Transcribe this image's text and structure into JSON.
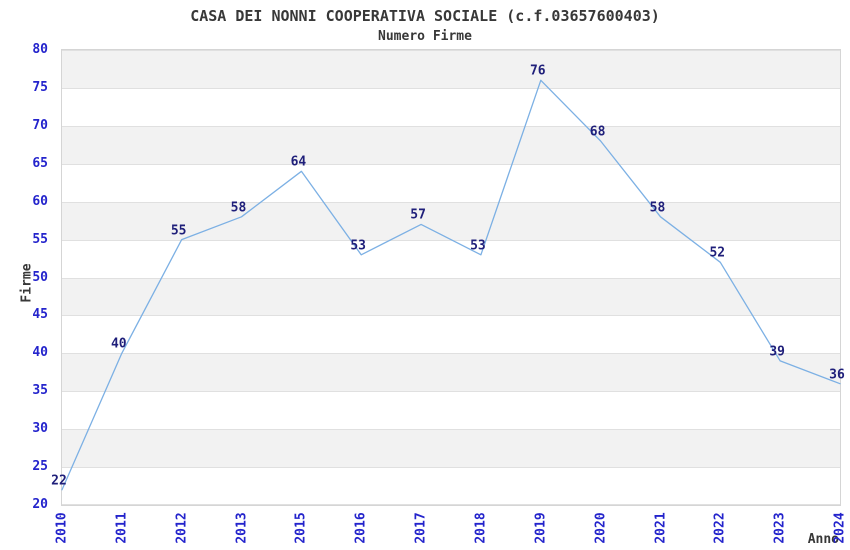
{
  "chart_data": {
    "type": "line",
    "title": "CASA DEI NONNI COOPERATIVA SOCIALE (c.f.03657600403)",
    "subtitle": "Numero Firme",
    "xlabel": "Anno",
    "ylabel": "Firme",
    "categories": [
      "2010",
      "2011",
      "2012",
      "2013",
      "2015",
      "2016",
      "2017",
      "2018",
      "2019",
      "2020",
      "2021",
      "2022",
      "2023",
      "2024"
    ],
    "values": [
      22,
      40,
      55,
      58,
      64,
      53,
      57,
      53,
      76,
      68,
      58,
      52,
      39,
      36
    ],
    "ylim": [
      20,
      80
    ],
    "ytick_step": 5,
    "yticks": [
      20,
      25,
      30,
      35,
      40,
      45,
      50,
      55,
      60,
      65,
      70,
      75,
      80
    ],
    "grid": "horizontal-bands",
    "legend": "none",
    "markers": "none",
    "data_labels_visible": true,
    "colors": {
      "line": "#7cb0e4",
      "data_label": "#1f1f7a",
      "tick_label": "#2424cc",
      "title_text": "#383838",
      "band_gray": "#f2f2f2",
      "gridline": "#e0e0e0",
      "plot_border": "#d5d5d5",
      "background": "#ffffff"
    }
  }
}
